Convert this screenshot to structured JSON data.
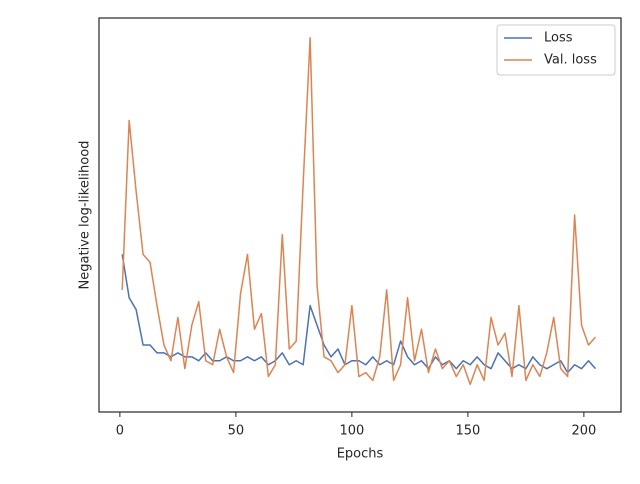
{
  "chart_data": {
    "type": "line",
    "xlabel": "Epochs",
    "ylabel": "Negative log-likelihood",
    "x": [
      1,
      4,
      7,
      10,
      13,
      16,
      19,
      22,
      25,
      28,
      31,
      34,
      37,
      40,
      43,
      46,
      49,
      52,
      55,
      58,
      61,
      64,
      67,
      70,
      73,
      76,
      79,
      82,
      85,
      88,
      91,
      94,
      97,
      100,
      103,
      106,
      109,
      112,
      115,
      118,
      121,
      124,
      127,
      130,
      133,
      136,
      139,
      142,
      145,
      148,
      151,
      154,
      157,
      160,
      163,
      166,
      169,
      172,
      175,
      178,
      181,
      184,
      187,
      190,
      193,
      196,
      199,
      202,
      205
    ],
    "series": [
      {
        "name": "Loss",
        "color": "#4c72b0",
        "values": [
          40,
          29,
          26,
          17,
          17,
          15,
          15,
          14,
          15,
          14,
          14,
          13,
          15,
          13,
          13,
          14,
          13,
          13,
          14,
          13,
          14,
          12,
          13,
          15,
          12,
          13,
          12,
          27,
          22,
          17,
          14,
          16,
          12,
          13,
          13,
          12,
          14,
          12,
          13,
          12,
          18,
          14,
          12,
          13,
          11,
          14,
          12,
          13,
          11,
          13,
          12,
          14,
          12,
          11,
          15,
          13,
          11,
          12,
          11,
          14,
          12,
          11,
          12,
          13,
          10,
          12,
          11,
          13,
          11
        ]
      },
      {
        "name": "Val. loss",
        "color": "#dd8452",
        "values": [
          31,
          74,
          56,
          40,
          38,
          27,
          17,
          13,
          24,
          11,
          22,
          28,
          13,
          12,
          21,
          14,
          10,
          30,
          40,
          21,
          25,
          9,
          12,
          45,
          16,
          18,
          58,
          95,
          32,
          14,
          13,
          10,
          12,
          27,
          9,
          10,
          8,
          14,
          31,
          8,
          12,
          29,
          13,
          21,
          10,
          16,
          11,
          13,
          9,
          12,
          7,
          12,
          8,
          24,
          17,
          20,
          9,
          27,
          8,
          12,
          9,
          15,
          24,
          11,
          9,
          50,
          22,
          17,
          19
        ]
      }
    ],
    "xlim": [
      -9,
      216
    ],
    "xticks": [
      0,
      50,
      100,
      150,
      200
    ],
    "ylim": [
      0,
      100
    ],
    "legend": "upper right"
  }
}
